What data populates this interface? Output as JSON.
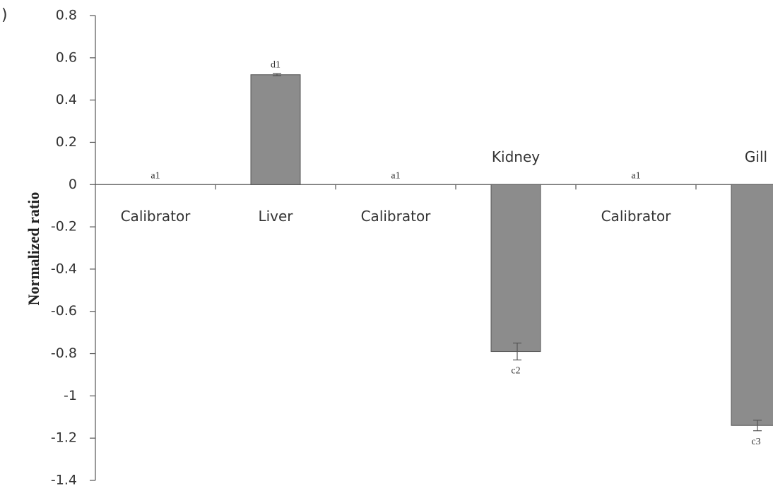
{
  "chart_data": {
    "type": "bar",
    "panel_label": ")",
    "y_label": "Normalized ratio",
    "categories": [
      "Calibrator",
      "Liver",
      "Calibrator",
      "Kidney",
      "Calibrator",
      "Gill"
    ],
    "values": [
      0,
      0.52,
      0,
      -0.79,
      0,
      -1.14
    ],
    "errors": [
      0,
      0.005,
      0,
      0.04,
      0,
      0.025
    ],
    "annotations": [
      "a1",
      "d1",
      "a1",
      "c2",
      "a1",
      "c3"
    ],
    "color": "#8c8c8c",
    "ylim": [
      -1.4,
      0.8
    ],
    "yticks": [
      0.8,
      0.6,
      0.4,
      0.2,
      0,
      -0.2,
      -0.4,
      -0.6,
      -0.8,
      -1,
      -1.2,
      -1.4
    ],
    "grid": false
  }
}
